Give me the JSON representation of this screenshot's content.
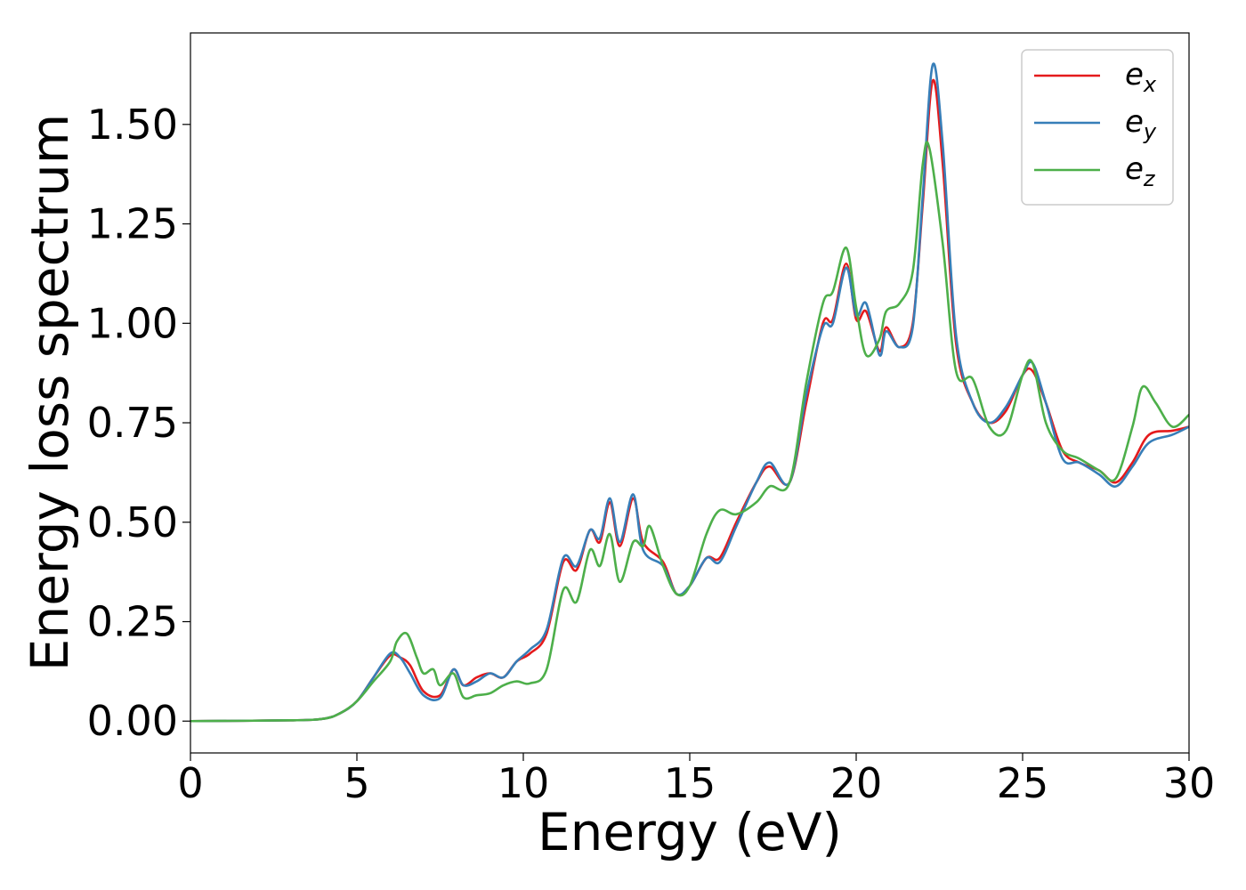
{
  "chart_data": {
    "type": "line",
    "xlabel": "Energy (eV)",
    "ylabel": "Energy loss spectrum",
    "xlim": [
      0,
      30
    ],
    "ylim": [
      -0.08,
      1.73
    ],
    "x_ticks": [
      0,
      5,
      10,
      15,
      20,
      25,
      30
    ],
    "x_tick_labels": [
      "0",
      "5",
      "10",
      "15",
      "20",
      "25",
      "30"
    ],
    "y_ticks": [
      0,
      0.25,
      0.5,
      0.75,
      1.0,
      1.25,
      1.5
    ],
    "y_tick_labels": [
      "0.00",
      "0.25",
      "0.50",
      "0.75",
      "1.00",
      "1.25",
      "1.50"
    ],
    "grid": false,
    "legend_position": "top-right",
    "series": [
      {
        "name": "e_x",
        "label_base": "e",
        "label_sub": "x",
        "color": "#e41a1c",
        "points": [
          [
            0,
            0
          ],
          [
            3,
            0.002
          ],
          [
            4,
            0.006
          ],
          [
            4.5,
            0.02
          ],
          [
            5,
            0.05
          ],
          [
            5.5,
            0.11
          ],
          [
            6,
            0.165
          ],
          [
            6.3,
            0.16
          ],
          [
            6.6,
            0.14
          ],
          [
            7,
            0.075
          ],
          [
            7.5,
            0.065
          ],
          [
            7.9,
            0.13
          ],
          [
            8.2,
            0.09
          ],
          [
            8.6,
            0.11
          ],
          [
            9,
            0.12
          ],
          [
            9.4,
            0.11
          ],
          [
            9.8,
            0.15
          ],
          [
            10.2,
            0.17
          ],
          [
            10.7,
            0.22
          ],
          [
            11.2,
            0.4
          ],
          [
            11.6,
            0.38
          ],
          [
            12,
            0.48
          ],
          [
            12.3,
            0.45
          ],
          [
            12.6,
            0.55
          ],
          [
            12.9,
            0.44
          ],
          [
            13.3,
            0.56
          ],
          [
            13.6,
            0.45
          ],
          [
            14.2,
            0.4
          ],
          [
            14.6,
            0.32
          ],
          [
            15,
            0.34
          ],
          [
            15.5,
            0.41
          ],
          [
            15.9,
            0.41
          ],
          [
            16.4,
            0.5
          ],
          [
            17,
            0.6
          ],
          [
            17.4,
            0.64
          ],
          [
            18,
            0.6
          ],
          [
            18.5,
            0.8
          ],
          [
            19,
            1.0
          ],
          [
            19.3,
            1.01
          ],
          [
            19.7,
            1.15
          ],
          [
            20,
            1.01
          ],
          [
            20.3,
            1.03
          ],
          [
            20.7,
            0.93
          ],
          [
            20.9,
            0.99
          ],
          [
            21.3,
            0.94
          ],
          [
            21.7,
            1.0
          ],
          [
            22,
            1.3
          ],
          [
            22.3,
            1.61
          ],
          [
            22.6,
            1.4
          ],
          [
            23,
            0.95
          ],
          [
            23.5,
            0.8
          ],
          [
            24,
            0.75
          ],
          [
            24.5,
            0.78
          ],
          [
            25,
            0.87
          ],
          [
            25.3,
            0.88
          ],
          [
            25.7,
            0.8
          ],
          [
            26.2,
            0.68
          ],
          [
            26.7,
            0.65
          ],
          [
            27.3,
            0.63
          ],
          [
            27.8,
            0.6
          ],
          [
            28.3,
            0.65
          ],
          [
            28.8,
            0.72
          ],
          [
            29.5,
            0.73
          ],
          [
            30,
            0.74
          ]
        ]
      },
      {
        "name": "e_y",
        "label_base": "e",
        "label_sub": "y",
        "color": "#377eb8",
        "points": [
          [
            0,
            0
          ],
          [
            3,
            0.002
          ],
          [
            4,
            0.006
          ],
          [
            4.5,
            0.02
          ],
          [
            5,
            0.05
          ],
          [
            5.5,
            0.11
          ],
          [
            6,
            0.17
          ],
          [
            6.3,
            0.16
          ],
          [
            6.6,
            0.12
          ],
          [
            7,
            0.065
          ],
          [
            7.5,
            0.058
          ],
          [
            7.9,
            0.13
          ],
          [
            8.2,
            0.09
          ],
          [
            8.6,
            0.1
          ],
          [
            9,
            0.12
          ],
          [
            9.4,
            0.11
          ],
          [
            9.8,
            0.15
          ],
          [
            10.2,
            0.18
          ],
          [
            10.7,
            0.23
          ],
          [
            11.2,
            0.41
          ],
          [
            11.6,
            0.39
          ],
          [
            12,
            0.48
          ],
          [
            12.3,
            0.46
          ],
          [
            12.6,
            0.56
          ],
          [
            12.9,
            0.45
          ],
          [
            13.3,
            0.57
          ],
          [
            13.6,
            0.43
          ],
          [
            14.2,
            0.39
          ],
          [
            14.6,
            0.32
          ],
          [
            15,
            0.34
          ],
          [
            15.5,
            0.41
          ],
          [
            15.9,
            0.4
          ],
          [
            16.4,
            0.49
          ],
          [
            17,
            0.6
          ],
          [
            17.4,
            0.65
          ],
          [
            18,
            0.6
          ],
          [
            18.5,
            0.82
          ],
          [
            19,
            0.99
          ],
          [
            19.3,
            1.0
          ],
          [
            19.7,
            1.14
          ],
          [
            20,
            1.02
          ],
          [
            20.3,
            1.05
          ],
          [
            20.7,
            0.92
          ],
          [
            20.9,
            0.98
          ],
          [
            21.3,
            0.94
          ],
          [
            21.7,
            0.99
          ],
          [
            22,
            1.32
          ],
          [
            22.3,
            1.65
          ],
          [
            22.6,
            1.45
          ],
          [
            23,
            0.97
          ],
          [
            23.5,
            0.8
          ],
          [
            24,
            0.75
          ],
          [
            24.5,
            0.79
          ],
          [
            25,
            0.87
          ],
          [
            25.3,
            0.9
          ],
          [
            25.7,
            0.8
          ],
          [
            26.2,
            0.66
          ],
          [
            26.7,
            0.65
          ],
          [
            27.3,
            0.62
          ],
          [
            27.8,
            0.59
          ],
          [
            28.3,
            0.64
          ],
          [
            28.8,
            0.7
          ],
          [
            29.5,
            0.72
          ],
          [
            30,
            0.74
          ]
        ]
      },
      {
        "name": "e_z",
        "label_base": "e",
        "label_sub": "z",
        "color": "#4daf4a",
        "points": [
          [
            0,
            0
          ],
          [
            3,
            0.002
          ],
          [
            4,
            0.006
          ],
          [
            4.5,
            0.02
          ],
          [
            5,
            0.05
          ],
          [
            5.5,
            0.1
          ],
          [
            6,
            0.15
          ],
          [
            6.2,
            0.2
          ],
          [
            6.5,
            0.22
          ],
          [
            6.8,
            0.16
          ],
          [
            7,
            0.12
          ],
          [
            7.3,
            0.13
          ],
          [
            7.5,
            0.09
          ],
          [
            7.9,
            0.12
          ],
          [
            8.2,
            0.06
          ],
          [
            8.6,
            0.065
          ],
          [
            9,
            0.07
          ],
          [
            9.4,
            0.09
          ],
          [
            9.8,
            0.1
          ],
          [
            10.2,
            0.095
          ],
          [
            10.7,
            0.13
          ],
          [
            11.2,
            0.33
          ],
          [
            11.6,
            0.3
          ],
          [
            12,
            0.43
          ],
          [
            12.3,
            0.39
          ],
          [
            12.6,
            0.47
          ],
          [
            12.9,
            0.35
          ],
          [
            13.3,
            0.45
          ],
          [
            13.6,
            0.44
          ],
          [
            13.8,
            0.49
          ],
          [
            14.2,
            0.39
          ],
          [
            14.6,
            0.32
          ],
          [
            15,
            0.34
          ],
          [
            15.5,
            0.47
          ],
          [
            15.9,
            0.53
          ],
          [
            16.4,
            0.52
          ],
          [
            17,
            0.55
          ],
          [
            17.4,
            0.59
          ],
          [
            18,
            0.6
          ],
          [
            18.5,
            0.85
          ],
          [
            19,
            1.05
          ],
          [
            19.3,
            1.08
          ],
          [
            19.7,
            1.19
          ],
          [
            20,
            1.04
          ],
          [
            20.3,
            0.92
          ],
          [
            20.7,
            0.96
          ],
          [
            20.9,
            1.03
          ],
          [
            21.3,
            1.05
          ],
          [
            21.7,
            1.13
          ],
          [
            22,
            1.4
          ],
          [
            22.2,
            1.44
          ],
          [
            22.6,
            1.2
          ],
          [
            23,
            0.88
          ],
          [
            23.5,
            0.86
          ],
          [
            24,
            0.74
          ],
          [
            24.5,
            0.73
          ],
          [
            25,
            0.87
          ],
          [
            25.3,
            0.9
          ],
          [
            25.7,
            0.75
          ],
          [
            26.2,
            0.68
          ],
          [
            26.7,
            0.66
          ],
          [
            27.3,
            0.63
          ],
          [
            27.8,
            0.61
          ],
          [
            28.3,
            0.74
          ],
          [
            28.6,
            0.84
          ],
          [
            29,
            0.8
          ],
          [
            29.5,
            0.74
          ],
          [
            30,
            0.77
          ]
        ]
      }
    ]
  }
}
